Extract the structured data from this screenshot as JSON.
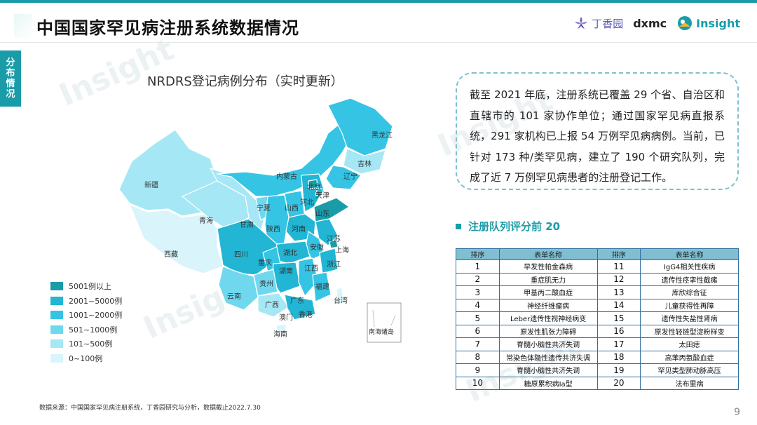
{
  "header": {
    "title": "中国国家罕见病注册系统数据情况",
    "logos": {
      "dxy": "丁香园",
      "dxmc": "dxmc",
      "insight": "Insight"
    }
  },
  "side_tab": [
    "分",
    "布",
    "情",
    "况"
  ],
  "watermark_text": "Insight",
  "map": {
    "title": "NRDRS登记病例分布（实时更新）",
    "inset_label": "南海诸岛",
    "provinces": {
      "heilongjiang": "黑龙江",
      "jilin": "吉林",
      "liaoning": "辽宁",
      "neimenggu": "内蒙古",
      "beijing": "北京",
      "tianjin": "天津",
      "hebei": "河北",
      "shanxi": "山西",
      "shandong": "山东",
      "xinjiang": "新疆",
      "xizang": "西藏",
      "qinghai": "青海",
      "gansu": "甘肃",
      "ningxia": "宁夏",
      "shaanxi": "陕西",
      "henan": "河南",
      "jiangsu": "江苏",
      "shanghai": "上海",
      "anhui": "安徽",
      "hubei": "湖北",
      "sichuan": "四川",
      "chongqing": "重庆",
      "zhejiang": "浙江",
      "hunan": "湖南",
      "jiangxi": "江西",
      "guizhou": "贵州",
      "fujian": "福建",
      "yunnan": "云南",
      "guangxi": "广西",
      "guangdong": "广东",
      "taiwan": "台湾",
      "xianggang": "香港",
      "aomen": "澳门",
      "hainan": "海南"
    }
  },
  "legend": [
    {
      "label": "5001例以上",
      "color": "#1a9ba8"
    },
    {
      "label": "2001~5000例",
      "color": "#22b5d4"
    },
    {
      "label": "1001~2000例",
      "color": "#35c4e4"
    },
    {
      "label": "501~1000例",
      "color": "#6fd8ef"
    },
    {
      "label": "101~500例",
      "color": "#a6e7f5"
    },
    {
      "label": "0~100例",
      "color": "#d9f4fa"
    }
  ],
  "info_text": "截至 2021 年底，注册系统已覆盖 29 个省、自治区和直辖市的 101 家协作单位；通过国家罕见病直报系统，291 家机构已上报 54 万例罕见病病例。当前，已针对 173 种/类罕见病，建立了 190 个研究队列，完成了近 7 万例罕见病患者的注册登记工作。",
  "ranking": {
    "heading": "注册队列评分前 20",
    "headers": {
      "rank": "排序",
      "name": "表单名称"
    },
    "left": [
      {
        "rank": "1",
        "name": "早发性帕金森病"
      },
      {
        "rank": "2",
        "name": "重症肌无力"
      },
      {
        "rank": "3",
        "name": "甲基丙二酸血症"
      },
      {
        "rank": "4",
        "name": "神经纤维瘤病"
      },
      {
        "rank": "5",
        "name": "Leber遗传性视神经病变"
      },
      {
        "rank": "6",
        "name": "原发性肌张力障碍"
      },
      {
        "rank": "7",
        "name": "脊髓小脑性共济失调"
      },
      {
        "rank": "8",
        "name": "常染色体隐性遗传共济失调"
      },
      {
        "rank": "9",
        "name": "脊髓小脑性共济失调"
      },
      {
        "rank": "10",
        "name": "糖原累积病Ia型"
      }
    ],
    "right": [
      {
        "rank": "11",
        "name": "IgG4相关性疾病"
      },
      {
        "rank": "12",
        "name": "遗传性痉挛性截瘫"
      },
      {
        "rank": "13",
        "name": "库欣综合征"
      },
      {
        "rank": "14",
        "name": "儿童获得性再障"
      },
      {
        "rank": "15",
        "name": "遗传性失盐性肾病"
      },
      {
        "rank": "16",
        "name": "原发性轻链型淀粉样变"
      },
      {
        "rank": "17",
        "name": "太田痣"
      },
      {
        "rank": "18",
        "name": "高苯丙氨酸血症"
      },
      {
        "rank": "19",
        "name": "罕见类型肺动脉高压"
      },
      {
        "rank": "20",
        "name": "法布里病"
      }
    ]
  },
  "source": "数据来源：中国国家罕见病注册系统，丁香园研究与分析，数据截止2022.7.30",
  "page_number": "9"
}
